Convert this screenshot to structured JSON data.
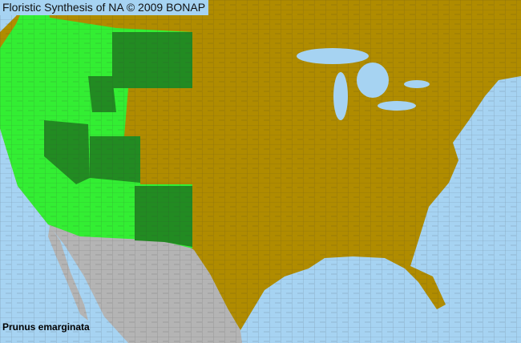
{
  "title": "Floristic Synthesis of NA © 2009 BONAP",
  "species": "Prunus emarginata",
  "colors": {
    "water": "#a6d3f2",
    "absent_land": "#b08c00",
    "present_county": "#33ee33",
    "present_state": "#228b22",
    "outside_area": "#b4b4b4",
    "boundary": "#333333"
  }
}
